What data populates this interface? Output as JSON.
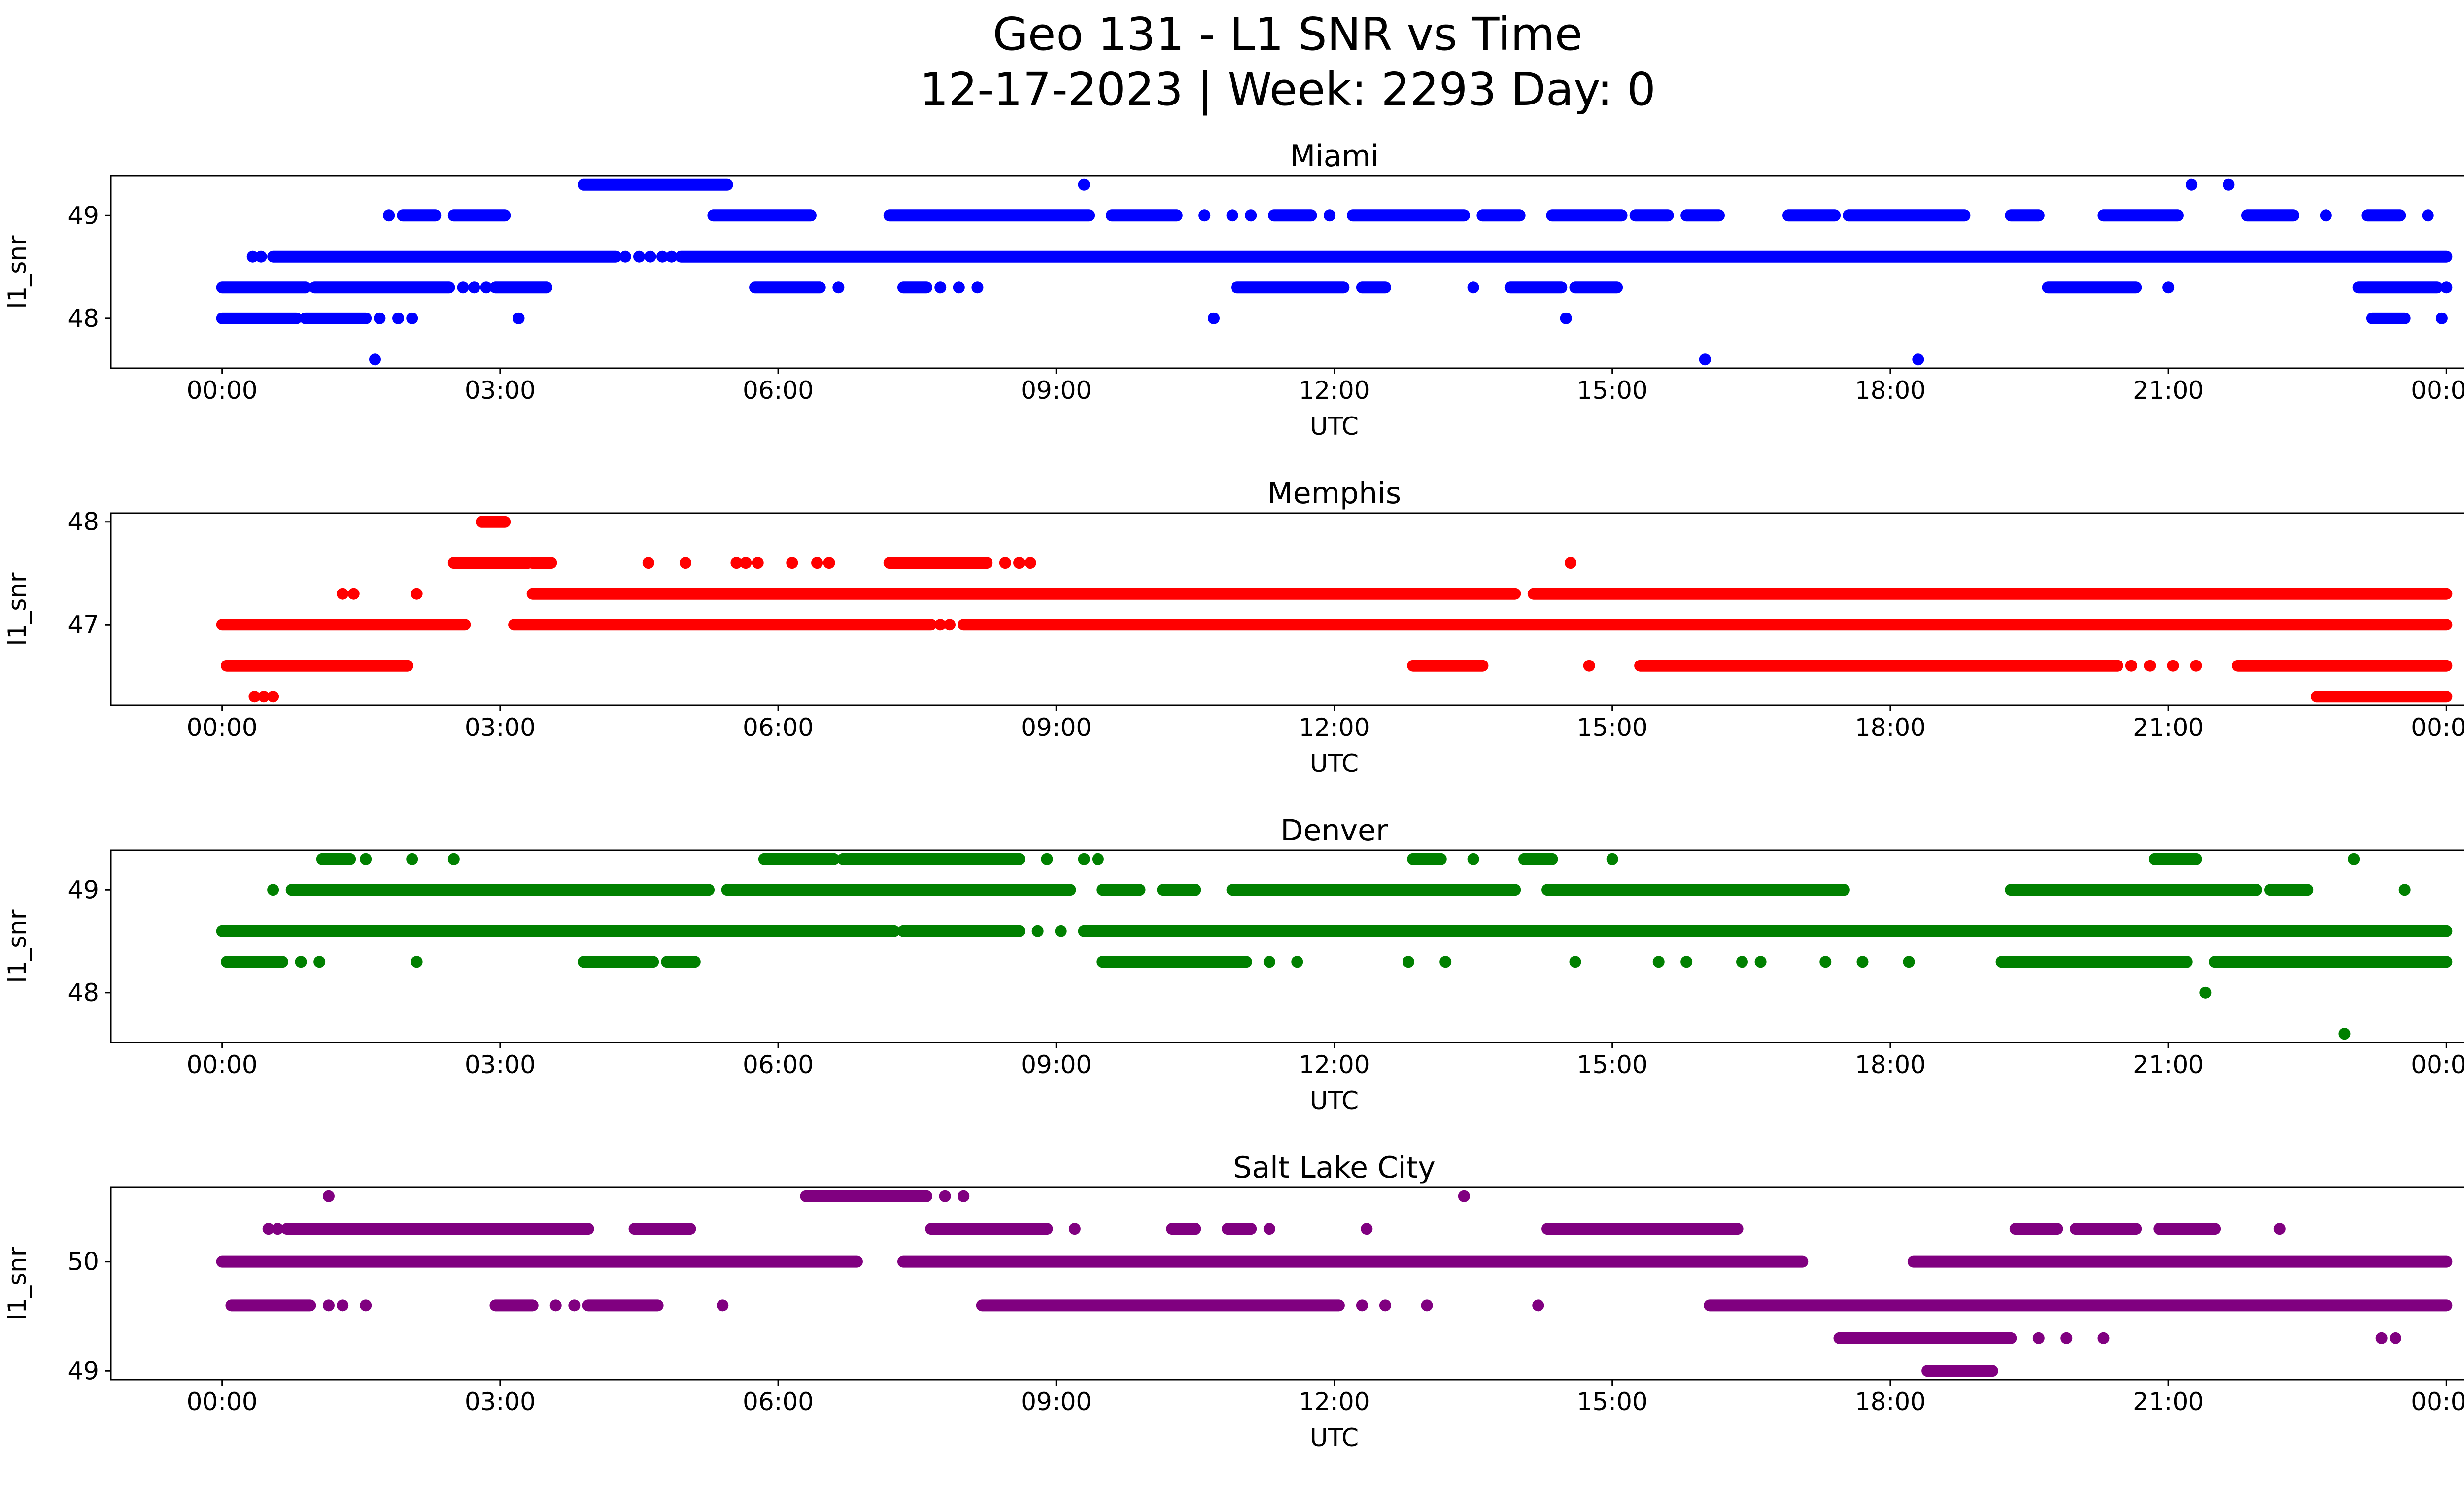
{
  "header": {
    "title_line1": "Geo 131 - L1 SNR vs Time",
    "title_line2": "12-17-2023 | Week: 2293 Day: 0"
  },
  "chart_data": [
    {
      "type": "scatter",
      "name": "miami",
      "title": "Miami",
      "color": "#0000ff",
      "xlabel": "UTC",
      "ylabel": "l1_snr",
      "xlim": [
        -1.2,
        25.2
      ],
      "ylim": [
        47.515,
        49.385
      ],
      "yticks": [
        48,
        49
      ],
      "xticks": {
        "hours": [
          0,
          3,
          6,
          9,
          12,
          15,
          18,
          21,
          24
        ],
        "labels": [
          "00:00",
          "03:00",
          "06:00",
          "09:00",
          "12:00",
          "15:00",
          "18:00",
          "21:00",
          "00:00"
        ]
      },
      "levels": [
        {
          "snr": 49.3,
          "runs": [
            [
              3.9,
              5.45
            ]
          ],
          "dots": [
            9.3,
            21.25,
            21.65
          ]
        },
        {
          "snr": 49.0,
          "runs": [
            [
              1.95,
              2.3
            ],
            [
              2.5,
              3.05
            ],
            [
              5.3,
              6.35
            ],
            [
              7.2,
              9.35
            ],
            [
              9.6,
              10.3
            ],
            [
              11.35,
              11.75
            ],
            [
              12.2,
              13.4
            ],
            [
              13.6,
              14.0
            ],
            [
              14.35,
              15.1
            ],
            [
              15.25,
              15.6
            ],
            [
              15.8,
              16.15
            ],
            [
              16.9,
              17.4
            ],
            [
              17.55,
              18.8
            ],
            [
              19.3,
              19.6
            ],
            [
              20.3,
              21.1
            ],
            [
              21.85,
              22.35
            ],
            [
              23.15,
              23.5
            ]
          ],
          "dots": [
            1.8,
            10.6,
            10.9,
            11.1,
            11.95,
            22.7,
            23.8
          ]
        },
        {
          "snr": 48.6,
          "runs": [
            [
              0.55,
              4.25
            ],
            [
              4.95,
              24.0
            ]
          ],
          "dots": [
            0.33,
            0.42,
            4.35,
            4.5,
            4.62,
            4.75,
            4.85
          ]
        },
        {
          "snr": 48.3,
          "runs": [
            [
              0.0,
              0.9
            ],
            [
              1.0,
              2.45
            ],
            [
              2.95,
              3.5
            ],
            [
              5.75,
              6.45
            ],
            [
              7.35,
              7.6
            ],
            [
              10.95,
              12.1
            ],
            [
              12.3,
              12.55
            ],
            [
              13.9,
              14.45
            ],
            [
              14.6,
              15.05
            ],
            [
              19.7,
              20.65
            ],
            [
              23.05,
              23.9
            ]
          ],
          "dots": [
            2.6,
            2.72,
            2.85,
            6.65,
            7.75,
            7.95,
            8.15,
            13.5,
            21.0,
            24.0
          ]
        },
        {
          "snr": 48.0,
          "runs": [
            [
              0.0,
              0.8
            ],
            [
              0.9,
              1.55
            ],
            [
              23.2,
              23.55
            ]
          ],
          "dots": [
            1.7,
            1.9,
            2.05,
            3.2,
            10.7,
            14.5,
            23.95
          ]
        },
        {
          "snr": 47.6,
          "runs": [],
          "dots": [
            1.65,
            16.0,
            18.3
          ]
        }
      ]
    },
    {
      "type": "scatter",
      "name": "memphis",
      "title": "Memphis",
      "color": "#ff0000",
      "xlabel": "UTC",
      "ylabel": "l1_snr",
      "xlim": [
        -1.2,
        25.2
      ],
      "ylim": [
        46.215,
        48.085
      ],
      "yticks": [
        47,
        48
      ],
      "xticks": {
        "hours": [
          0,
          3,
          6,
          9,
          12,
          15,
          18,
          21,
          24
        ],
        "labels": [
          "00:00",
          "03:00",
          "06:00",
          "09:00",
          "12:00",
          "15:00",
          "18:00",
          "21:00",
          "00:00"
        ]
      },
      "levels": [
        {
          "snr": 48.0,
          "runs": [
            [
              2.8,
              3.05
            ]
          ],
          "dots": []
        },
        {
          "snr": 47.6,
          "runs": [
            [
              2.5,
              3.3
            ],
            [
              3.35,
              3.55
            ],
            [
              7.2,
              8.25
            ]
          ],
          "dots": [
            4.6,
            5.0,
            5.55,
            5.65,
            5.78,
            6.15,
            6.42,
            6.55,
            8.45,
            8.6,
            8.72,
            14.55
          ]
        },
        {
          "snr": 47.3,
          "runs": [
            [
              3.35,
              13.95
            ],
            [
              14.15,
              24.0
            ]
          ],
          "dots": [
            1.3,
            1.42,
            2.1
          ]
        },
        {
          "snr": 47.0,
          "runs": [
            [
              0.0,
              2.62
            ],
            [
              3.15,
              7.65
            ],
            [
              8.0,
              24.0
            ]
          ],
          "dots": [
            7.75,
            7.85
          ]
        },
        {
          "snr": 46.6,
          "runs": [
            [
              0.05,
              2.0
            ],
            [
              12.85,
              13.6
            ],
            [
              15.3,
              20.45
            ],
            [
              21.75,
              24.0
            ]
          ],
          "dots": [
            14.75,
            20.6,
            20.8,
            21.05,
            21.3
          ]
        },
        {
          "snr": 46.3,
          "runs": [
            [
              22.6,
              24.0
            ]
          ],
          "dots": [
            0.35,
            0.45,
            0.55
          ]
        }
      ]
    },
    {
      "type": "scatter",
      "name": "denver",
      "title": "Denver",
      "color": "#008000",
      "xlabel": "UTC",
      "ylabel": "l1_snr",
      "xlim": [
        -1.2,
        25.2
      ],
      "ylim": [
        47.515,
        49.385
      ],
      "yticks": [
        48,
        49
      ],
      "xticks": {
        "hours": [
          0,
          3,
          6,
          9,
          12,
          15,
          18,
          21,
          24
        ],
        "labels": [
          "00:00",
          "03:00",
          "06:00",
          "09:00",
          "12:00",
          "15:00",
          "18:00",
          "21:00",
          "00:00"
        ]
      },
      "levels": [
        {
          "snr": 49.3,
          "runs": [
            [
              1.08,
              1.38
            ],
            [
              5.85,
              6.6
            ],
            [
              6.7,
              8.6
            ],
            [
              12.85,
              13.15
            ],
            [
              14.05,
              14.35
            ],
            [
              20.85,
              21.3
            ]
          ],
          "dots": [
            1.55,
            2.05,
            2.5,
            8.9,
            9.3,
            9.45,
            13.5,
            15.0,
            23.0
          ]
        },
        {
          "snr": 49.0,
          "runs": [
            [
              0.75,
              5.25
            ],
            [
              5.45,
              9.15
            ],
            [
              9.5,
              9.9
            ],
            [
              10.15,
              10.5
            ],
            [
              10.9,
              13.95
            ],
            [
              14.3,
              17.5
            ],
            [
              19.3,
              21.95
            ],
            [
              22.1,
              22.5
            ]
          ],
          "dots": [
            0.55,
            23.55
          ]
        },
        {
          "snr": 48.6,
          "runs": [
            [
              0.0,
              7.25
            ],
            [
              7.35,
              8.6
            ],
            [
              9.3,
              24.0
            ]
          ],
          "dots": [
            8.8,
            9.05
          ]
        },
        {
          "snr": 48.3,
          "runs": [
            [
              0.05,
              0.65
            ],
            [
              3.9,
              4.65
            ],
            [
              4.8,
              5.1
            ],
            [
              9.5,
              11.05
            ],
            [
              19.2,
              21.2
            ],
            [
              21.5,
              24.0
            ]
          ],
          "dots": [
            0.85,
            1.05,
            2.1,
            11.3,
            11.6,
            12.8,
            13.2,
            14.6,
            15.5,
            15.8,
            16.4,
            16.6,
            17.3,
            17.7,
            18.2
          ]
        },
        {
          "snr": 48.0,
          "runs": [],
          "dots": [
            21.4
          ]
        },
        {
          "snr": 47.6,
          "runs": [],
          "dots": [
            22.9
          ]
        }
      ]
    },
    {
      "type": "scatter",
      "name": "salt-lake-city",
      "title": "Salt Lake City",
      "color": "#800080",
      "xlabel": "UTC",
      "ylabel": "l1_snr",
      "xlim": [
        -1.2,
        25.2
      ],
      "ylim": [
        48.92,
        50.68
      ],
      "yticks": [
        49,
        50
      ],
      "xticks": {
        "hours": [
          0,
          3,
          6,
          9,
          12,
          15,
          18,
          21,
          24
        ],
        "labels": [
          "00:00",
          "03:00",
          "06:00",
          "09:00",
          "12:00",
          "15:00",
          "18:00",
          "21:00",
          "00:00"
        ]
      },
      "levels": [
        {
          "snr": 50.6,
          "runs": [
            [
              6.3,
              7.6
            ]
          ],
          "dots": [
            1.15,
            7.8,
            8.0,
            13.4
          ]
        },
        {
          "snr": 50.3,
          "runs": [
            [
              0.7,
              3.95
            ],
            [
              4.45,
              5.05
            ],
            [
              7.65,
              8.9
            ],
            [
              10.25,
              10.5
            ],
            [
              10.85,
              11.1
            ],
            [
              14.3,
              16.35
            ],
            [
              19.35,
              19.8
            ],
            [
              20.0,
              20.65
            ],
            [
              20.9,
              21.5
            ]
          ],
          "dots": [
            0.5,
            0.6,
            9.2,
            11.3,
            12.35,
            22.2
          ]
        },
        {
          "snr": 50.0,
          "runs": [
            [
              0.0,
              6.85
            ],
            [
              7.35,
              17.05
            ],
            [
              18.25,
              24.0
            ]
          ],
          "dots": []
        },
        {
          "snr": 49.6,
          "runs": [
            [
              0.1,
              0.95
            ],
            [
              2.95,
              3.35
            ],
            [
              3.95,
              4.7
            ],
            [
              8.2,
              12.05
            ],
            [
              16.05,
              24.0
            ]
          ],
          "dots": [
            1.15,
            1.3,
            1.55,
            3.6,
            3.8,
            5.4,
            12.3,
            12.55,
            13.0,
            14.2
          ]
        },
        {
          "snr": 49.3,
          "runs": [
            [
              17.45,
              19.3
            ]
          ],
          "dots": [
            19.6,
            19.9,
            20.3,
            23.3,
            23.45
          ]
        },
        {
          "snr": 49.0,
          "runs": [
            [
              18.4,
              19.1
            ]
          ],
          "dots": []
        }
      ]
    }
  ]
}
